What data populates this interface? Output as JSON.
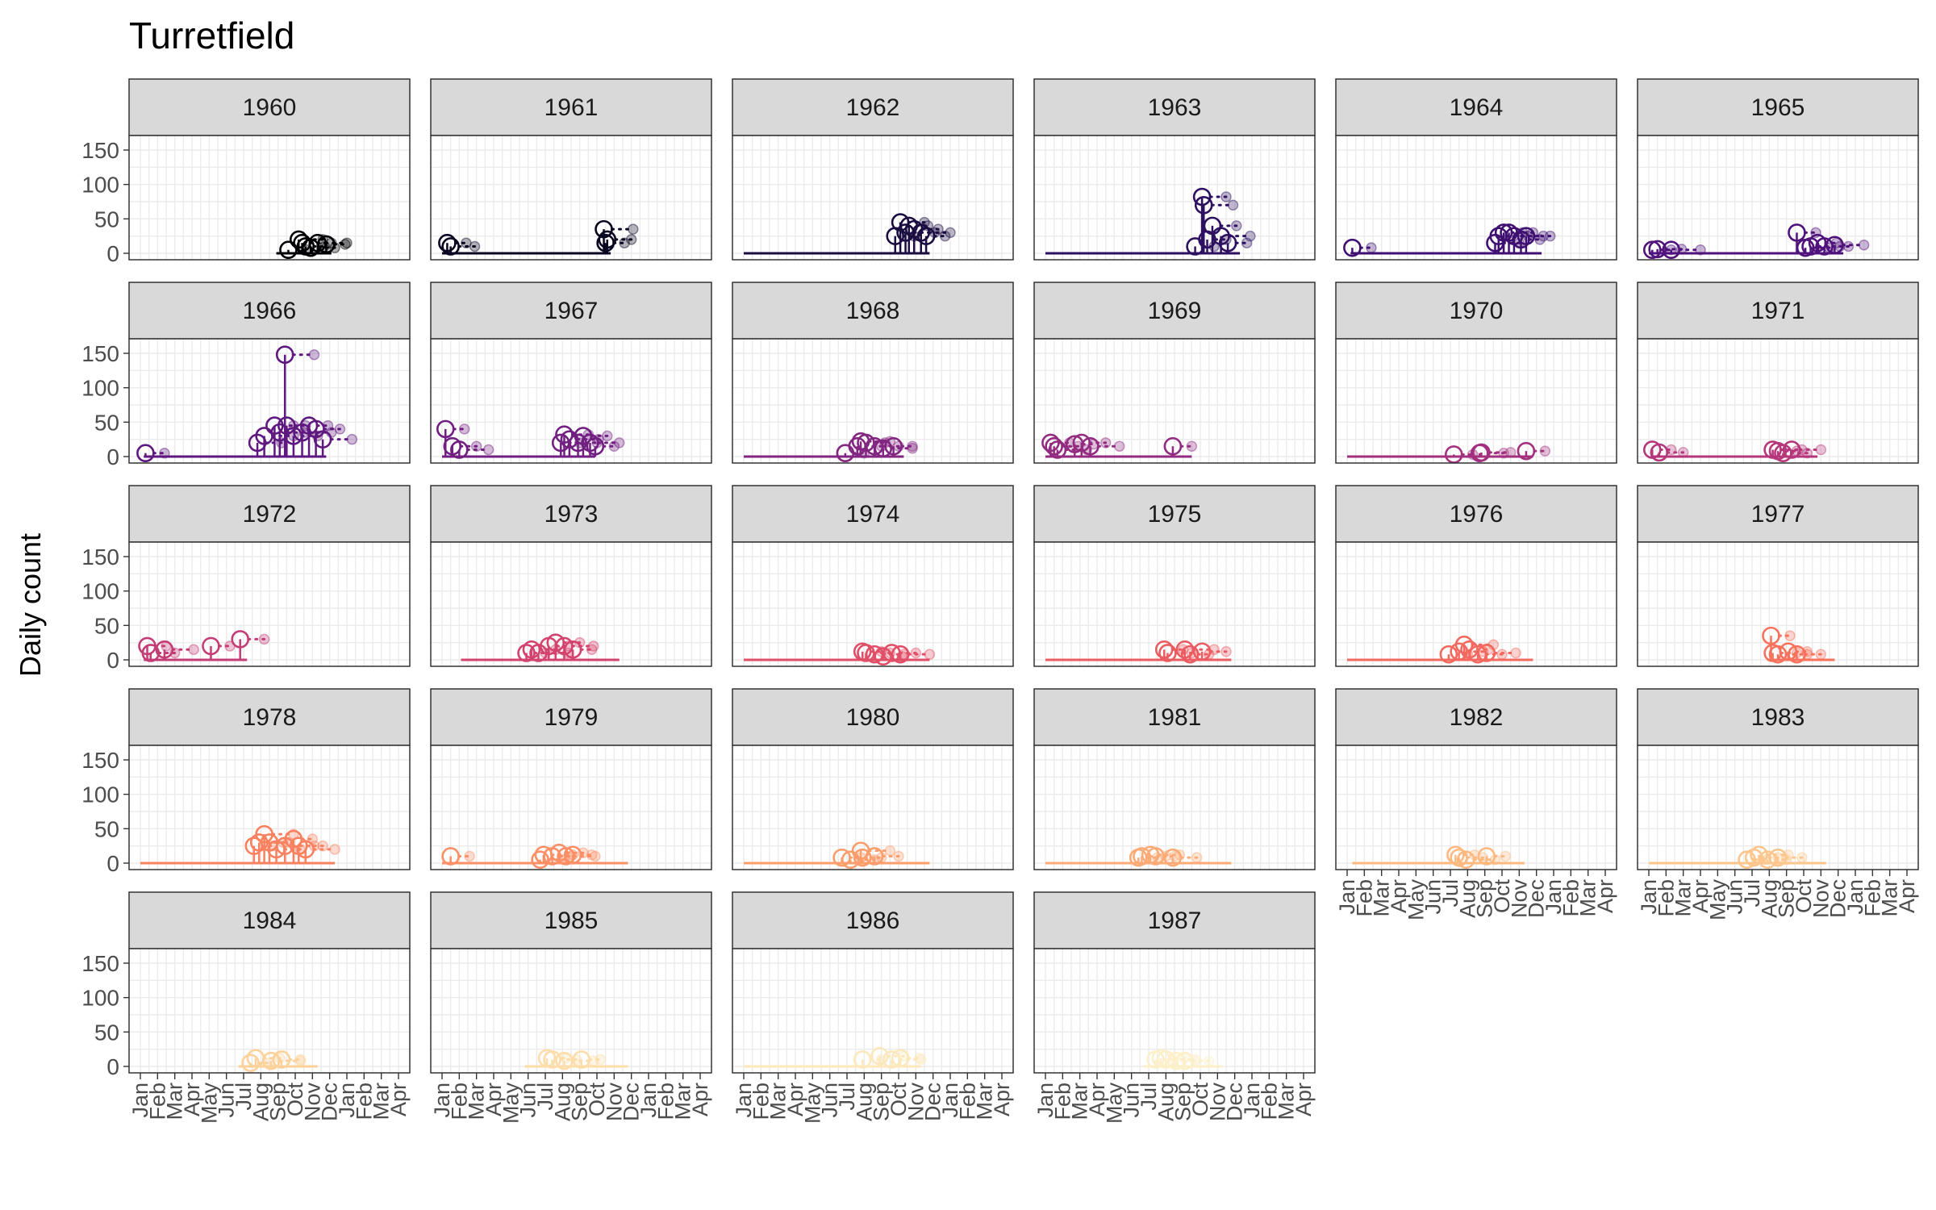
{
  "chart_data": {
    "type": "line",
    "title": "Turretfield",
    "xlabel": "",
    "ylabel": "Daily count",
    "ylim": [
      0,
      150
    ],
    "y_ticks": [
      0,
      50,
      100,
      150
    ],
    "x_ticks": [
      "Jan",
      "Feb",
      "Mar",
      "Apr",
      "May",
      "Jun",
      "Jul",
      "Aug",
      "Sep",
      "Oct",
      "Nov",
      "Dec",
      "Jan",
      "Feb",
      "Mar",
      "Apr"
    ],
    "grid": true,
    "legend": "none",
    "facets": [
      {
        "label": "1960",
        "color": "#000004",
        "line_start": 7.9,
        "line_end": 11.1,
        "points": [
          [
            8.6,
            5
          ],
          [
            9.2,
            20
          ],
          [
            9.4,
            15
          ],
          [
            9.6,
            10
          ],
          [
            9.9,
            8
          ],
          [
            10.3,
            15
          ],
          [
            10.8,
            13
          ]
        ]
      },
      {
        "label": "1961",
        "color": "#0a0722",
        "line_start": 0,
        "line_end": 9.8,
        "points": [
          [
            0.3,
            15
          ],
          [
            0.5,
            10
          ],
          [
            9.4,
            35
          ],
          [
            9.5,
            15
          ],
          [
            9.6,
            20
          ]
        ]
      },
      {
        "label": "1962",
        "color": "#1b0c41",
        "line_start": 0,
        "line_end": 10.8,
        "points": [
          [
            8.8,
            25
          ],
          [
            9.1,
            45
          ],
          [
            9.4,
            30
          ],
          [
            9.6,
            40
          ],
          [
            9.9,
            35
          ],
          [
            10.3,
            30
          ],
          [
            10.6,
            25
          ]
        ]
      },
      {
        "label": "1963",
        "color": "#2d1160",
        "line_start": 0,
        "line_end": 11.3,
        "points": [
          [
            8.7,
            10
          ],
          [
            9.1,
            82
          ],
          [
            9.2,
            70
          ],
          [
            9.4,
            20
          ],
          [
            9.7,
            40
          ],
          [
            10.2,
            25
          ],
          [
            10.6,
            15
          ]
        ]
      },
      {
        "label": "1964",
        "color": "#3f0f72",
        "line_start": 0.2,
        "line_end": 11.3,
        "points": [
          [
            0.3,
            8
          ],
          [
            8.6,
            15
          ],
          [
            8.8,
            25
          ],
          [
            9.1,
            30
          ],
          [
            9.4,
            30
          ],
          [
            9.7,
            25
          ],
          [
            10.1,
            20
          ],
          [
            10.4,
            25
          ]
        ]
      },
      {
        "label": "1965",
        "color": "#50127b",
        "line_start": 0,
        "line_end": 11.3,
        "points": [
          [
            0.2,
            5
          ],
          [
            0.5,
            6
          ],
          [
            1.3,
            5
          ],
          [
            8.6,
            30
          ],
          [
            9.1,
            8
          ],
          [
            9.4,
            10
          ],
          [
            9.8,
            15
          ],
          [
            10.2,
            10
          ],
          [
            10.8,
            12
          ]
        ]
      },
      {
        "label": "1966",
        "color": "#5f187f",
        "line_start": 0.2,
        "line_end": 10.8,
        "points": [
          [
            0.3,
            5
          ],
          [
            6.8,
            20
          ],
          [
            7.2,
            30
          ],
          [
            7.8,
            45
          ],
          [
            8.1,
            35
          ],
          [
            8.4,
            148
          ],
          [
            8.5,
            45
          ],
          [
            8.9,
            30
          ],
          [
            9.4,
            35
          ],
          [
            9.8,
            45
          ],
          [
            10.2,
            40
          ],
          [
            10.6,
            25
          ]
        ]
      },
      {
        "label": "1967",
        "color": "#711f81",
        "line_start": 0,
        "line_end": 8.9,
        "points": [
          [
            0.2,
            40
          ],
          [
            0.6,
            15
          ],
          [
            1.0,
            10
          ],
          [
            6.9,
            20
          ],
          [
            7.1,
            32
          ],
          [
            7.4,
            25
          ],
          [
            7.9,
            20
          ],
          [
            8.2,
            30
          ],
          [
            8.6,
            20
          ],
          [
            8.9,
            15
          ]
        ]
      },
      {
        "label": "1968",
        "color": "#822681",
        "line_start": 0,
        "line_end": 9.3,
        "points": [
          [
            5.9,
            5
          ],
          [
            6.6,
            15
          ],
          [
            6.8,
            22
          ],
          [
            7.1,
            20
          ],
          [
            7.6,
            15
          ],
          [
            8.1,
            12
          ],
          [
            8.7,
            15
          ]
        ]
      },
      {
        "label": "1969",
        "color": "#932b80",
        "line_start": 0,
        "line_end": 8.5,
        "points": [
          [
            0.3,
            20
          ],
          [
            0.5,
            15
          ],
          [
            0.7,
            10
          ],
          [
            1.7,
            18
          ],
          [
            2.1,
            20
          ],
          [
            2.6,
            15
          ],
          [
            7.4,
            15
          ]
        ]
      },
      {
        "label": "1970",
        "color": "#a3307e",
        "line_start": 0,
        "line_end": 10.8,
        "points": [
          [
            6.2,
            3
          ],
          [
            7.7,
            5
          ],
          [
            7.8,
            6
          ],
          [
            10.4,
            8
          ]
        ]
      },
      {
        "label": "1971",
        "color": "#b5367a",
        "line_start": 0.1,
        "line_end": 9.8,
        "points": [
          [
            0.2,
            10
          ],
          [
            0.6,
            6
          ],
          [
            7.2,
            10
          ],
          [
            7.5,
            8
          ],
          [
            7.8,
            5
          ],
          [
            8.3,
            10
          ]
        ]
      },
      {
        "label": "1972",
        "color": "#c43c75",
        "line_start": 0.2,
        "line_end": 6.2,
        "points": [
          [
            0.4,
            20
          ],
          [
            0.6,
            10
          ],
          [
            1.4,
            15
          ],
          [
            4.1,
            20
          ],
          [
            5.8,
            30
          ]
        ]
      },
      {
        "label": "1973",
        "color": "#d3436e",
        "line_start": 1.1,
        "line_end": 10.3,
        "points": [
          [
            4.9,
            10
          ],
          [
            5.2,
            15
          ],
          [
            5.6,
            10
          ],
          [
            6.2,
            20
          ],
          [
            6.6,
            25
          ],
          [
            7.1,
            20
          ],
          [
            7.6,
            15
          ]
        ]
      },
      {
        "label": "1974",
        "color": "#e04f67",
        "line_start": 0,
        "line_end": 10.8,
        "points": [
          [
            6.9,
            12
          ],
          [
            7.1,
            10
          ],
          [
            7.6,
            8
          ],
          [
            8.1,
            5
          ],
          [
            8.6,
            10
          ],
          [
            9.1,
            8
          ]
        ]
      },
      {
        "label": "1975",
        "color": "#ea5c62",
        "line_start": 0,
        "line_end": 10.8,
        "points": [
          [
            6.9,
            15
          ],
          [
            7.1,
            10
          ],
          [
            8.1,
            15
          ],
          [
            8.4,
            8
          ],
          [
            9.1,
            12
          ]
        ]
      },
      {
        "label": "1976",
        "color": "#f3695f",
        "line_start": 0,
        "line_end": 10.8,
        "points": [
          [
            5.9,
            8
          ],
          [
            6.5,
            12
          ],
          [
            6.8,
            22
          ],
          [
            7.1,
            15
          ],
          [
            7.6,
            8
          ],
          [
            8.1,
            10
          ]
        ]
      },
      {
        "label": "1977",
        "color": "#f7725c",
        "line_start": 6.9,
        "line_end": 10.8,
        "points": [
          [
            7.1,
            35
          ],
          [
            7.2,
            10
          ],
          [
            7.5,
            8
          ],
          [
            8.1,
            12
          ],
          [
            8.6,
            8
          ]
        ]
      },
      {
        "label": "1978",
        "color": "#fa815f",
        "line_start": 0,
        "line_end": 11.3,
        "points": [
          [
            6.6,
            25
          ],
          [
            6.9,
            30
          ],
          [
            7.2,
            42
          ],
          [
            7.5,
            30
          ],
          [
            7.9,
            20
          ],
          [
            8.4,
            25
          ],
          [
            8.9,
            35
          ],
          [
            9.2,
            25
          ],
          [
            9.6,
            20
          ]
        ]
      },
      {
        "label": "1979",
        "color": "#fb8f65",
        "line_start": 0,
        "line_end": 10.8,
        "points": [
          [
            0.5,
            10
          ],
          [
            5.7,
            5
          ],
          [
            5.9,
            12
          ],
          [
            6.4,
            10
          ],
          [
            6.8,
            15
          ],
          [
            7.2,
            10
          ],
          [
            7.6,
            12
          ]
        ]
      },
      {
        "label": "1980",
        "color": "#fc9d6c",
        "line_start": 0,
        "line_end": 10.8,
        "points": [
          [
            5.7,
            8
          ],
          [
            6.2,
            5
          ],
          [
            6.8,
            18
          ],
          [
            6.9,
            8
          ],
          [
            7.6,
            10
          ]
        ]
      },
      {
        "label": "1981",
        "color": "#fdab76",
        "line_start": 0,
        "line_end": 10.8,
        "points": [
          [
            5.4,
            8
          ],
          [
            5.6,
            10
          ],
          [
            6.1,
            12
          ],
          [
            6.4,
            10
          ],
          [
            7.4,
            8
          ]
        ]
      },
      {
        "label": "1982",
        "color": "#fdb980",
        "line_start": 0.3,
        "line_end": 10.3,
        "points": [
          [
            6.3,
            12
          ],
          [
            6.5,
            8
          ],
          [
            6.9,
            5
          ],
          [
            8.1,
            10
          ]
        ]
      },
      {
        "label": "1983",
        "color": "#fdc68c",
        "line_start": 0,
        "line_end": 10.3,
        "points": [
          [
            5.7,
            5
          ],
          [
            6.1,
            8
          ],
          [
            6.4,
            12
          ],
          [
            6.9,
            5
          ],
          [
            7.5,
            8
          ]
        ]
      },
      {
        "label": "1984",
        "color": "#fdd29a",
        "line_start": 5.7,
        "line_end": 10.3,
        "points": [
          [
            6.4,
            5
          ],
          [
            6.7,
            12
          ],
          [
            7.6,
            8
          ],
          [
            8.2,
            10
          ]
        ]
      },
      {
        "label": "1985",
        "color": "#fdddaa",
        "line_start": 4.8,
        "line_end": 10.8,
        "points": [
          [
            6.1,
            12
          ],
          [
            6.4,
            10
          ],
          [
            7.1,
            8
          ],
          [
            8.1,
            10
          ]
        ]
      },
      {
        "label": "1986",
        "color": "#fde8bb",
        "line_start": 0,
        "line_end": 10.3,
        "points": [
          [
            6.9,
            10
          ],
          [
            7.9,
            15
          ],
          [
            8.6,
            10
          ],
          [
            9.1,
            12
          ]
        ]
      },
      {
        "label": "1987",
        "color": "#fdf0c9",
        "line_start": 5.7,
        "line_end": 10.3,
        "points": [
          [
            6.4,
            10
          ],
          [
            6.7,
            12
          ],
          [
            7.0,
            10
          ],
          [
            7.6,
            8
          ],
          [
            8.1,
            8
          ]
        ]
      }
    ]
  }
}
